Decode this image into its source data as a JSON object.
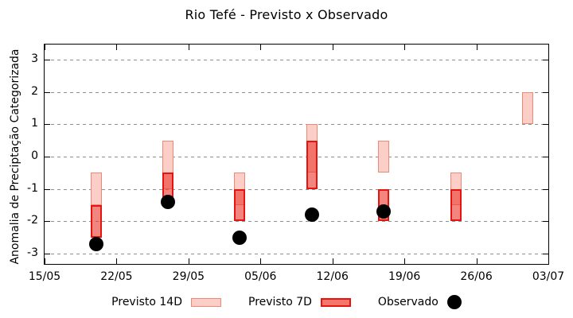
{
  "title": "Rio Tefé - Previsto x Observado",
  "y_axis": {
    "label": "Anomalia de Preciptação Categorizada",
    "ticks": [
      "3",
      "2",
      "1",
      "0",
      "-1",
      "-2",
      "-3"
    ],
    "tick_values": [
      3,
      2,
      1,
      0,
      -1,
      -2,
      -3
    ]
  },
  "x_axis": {
    "ticks": [
      "15/05",
      "22/05",
      "29/05",
      "05/06",
      "12/06",
      "19/06",
      "26/06",
      "03/07"
    ]
  },
  "legend": {
    "items": [
      {
        "label": "Previsto 14D",
        "swatch": "box-14d"
      },
      {
        "label": "Previsto 7D",
        "swatch": "box-7d"
      },
      {
        "label": "Observado",
        "swatch": "dot"
      }
    ]
  },
  "colors": {
    "previsto14_fill": "#fbcfc8",
    "previsto14_border": "#ef8977",
    "previsto7_fill_solid": "#f4776c",
    "previsto7_fill_alpha": "rgba(236,58,48,0.62)",
    "previsto7_border": "#e41410",
    "observado": "#000000",
    "grid": "#909090",
    "border": "#000000"
  },
  "chart_data": {
    "type": "bar",
    "subtype": "floating-range-boxes-with-scatter",
    "title": "Rio Tefé - Previsto x Observado",
    "xlabel": "",
    "ylabel": "Anomalia de Preciptação Categorizada",
    "ylim": [
      -3.5,
      3.5
    ],
    "grid": true,
    "legend_position": "bottom",
    "x_tick_labels": [
      "15/05",
      "22/05",
      "29/05",
      "05/06",
      "12/06",
      "19/06",
      "26/06",
      "03/07"
    ],
    "categories": [
      "20/05",
      "27/05",
      "03/06",
      "10/06",
      "17/06",
      "24/06",
      "01/07"
    ],
    "day_offsets_from_15_05": [
      5,
      12,
      19,
      26,
      33,
      40,
      47
    ],
    "series": [
      {
        "name": "Previsto 14D",
        "type": "range",
        "ranges": [
          [
            -1.5,
            -0.5
          ],
          [
            -1.0,
            0.5
          ],
          [
            -1.5,
            -0.5
          ],
          [
            -0.5,
            1.0
          ],
          [
            -0.5,
            0.5
          ],
          [
            -1.5,
            -0.5
          ],
          [
            1.0,
            2.0
          ]
        ]
      },
      {
        "name": "Previsto 7D",
        "type": "range",
        "ranges": [
          [
            -2.5,
            -1.5
          ],
          [
            -1.5,
            -0.5
          ],
          [
            -2.0,
            -1.0
          ],
          [
            -1.0,
            0.5
          ],
          [
            -2.0,
            -1.0
          ],
          [
            -2.0,
            -1.0
          ],
          null
        ]
      },
      {
        "name": "Observado",
        "type": "scatter",
        "values": [
          -2.7,
          -1.4,
          -2.5,
          -1.8,
          -1.7,
          null,
          null
        ]
      }
    ]
  }
}
